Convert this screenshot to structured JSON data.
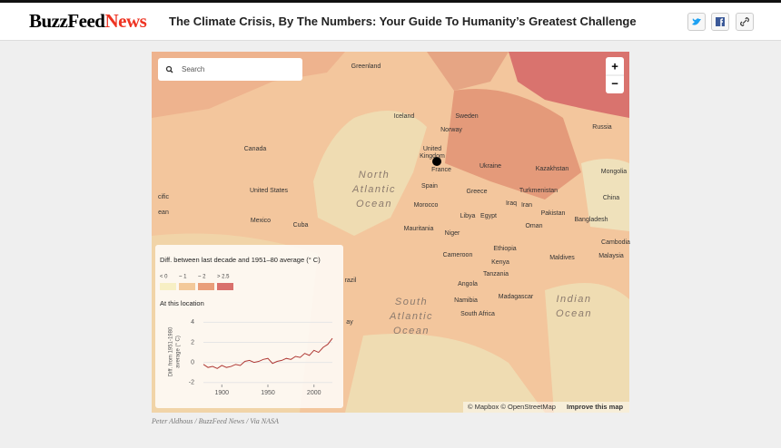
{
  "header": {
    "brand": "BuzzFeed",
    "brand_suffix": "News",
    "title": "The Climate Crisis, By The Numbers: Your Guide To Humanity’s Greatest Challenge"
  },
  "map": {
    "search_placeholder": "Search",
    "zoom_in": "+",
    "zoom_out": "−",
    "labels": [
      "Greenland",
      "Iceland",
      "Sweden",
      "Norway",
      "Russia",
      "Canada",
      "United",
      "Kingdom",
      "France",
      "Ukraine",
      "Kazakhstan",
      "Mongolia",
      "United States",
      "Spain",
      "Greece",
      "Turkmenistan",
      "China",
      "Morocco",
      "Iraq",
      "Iran",
      "Mexico",
      "Cuba",
      "Libya",
      "Egypt",
      "Pakistan",
      "Bangladesh",
      "Oman",
      "Mauritania",
      "Niger",
      "Ethiopia",
      "Cambodia",
      "Cameroon",
      "Kenya",
      "Maldives",
      "Malaysia",
      "Tanzania",
      "Angola",
      "Madagascar",
      "Namibia",
      "South Africa",
      "razil",
      "ay",
      "cific",
      "ean"
    ],
    "ocean_labels": [
      "North",
      "Atlantic",
      "Ocean",
      "South",
      "Atlantic",
      "Ocean",
      "Indian",
      "Ocean"
    ],
    "attribution": "© Mapbox © OpenStreetMap",
    "improve": "Improve this map"
  },
  "legend": {
    "title": "Diff. between last decade and 1951–80 average (° C)",
    "items": [
      {
        "label": "< 0",
        "color": "#f7efc4"
      },
      {
        "label": "~ 1",
        "color": "#f3c99a"
      },
      {
        "label": "~ 2",
        "color": "#e99e7a"
      },
      {
        "label": "> 2.5",
        "color": "#d9706c"
      }
    ],
    "location_title": "At this location"
  },
  "chart_data": {
    "type": "line",
    "y_label": [
      "Diff. from 1951-1980",
      "average (° C)"
    ],
    "x": [
      1880,
      1885,
      1890,
      1895,
      1900,
      1905,
      1910,
      1915,
      1920,
      1925,
      1930,
      1935,
      1940,
      1945,
      1950,
      1955,
      1960,
      1965,
      1970,
      1975,
      1980,
      1985,
      1990,
      1995,
      2000,
      2005,
      2010,
      2015,
      2020
    ],
    "values": [
      -0.2,
      -0.5,
      -0.4,
      -0.6,
      -0.3,
      -0.5,
      -0.4,
      -0.2,
      -0.3,
      0.1,
      0.2,
      0.0,
      0.1,
      0.3,
      0.4,
      -0.1,
      0.1,
      0.2,
      0.4,
      0.3,
      0.6,
      0.5,
      0.9,
      0.7,
      1.2,
      1.0,
      1.5,
      1.8,
      2.4
    ],
    "color": "#b03a36",
    "xlim": [
      1880,
      2020
    ],
    "ylim": [
      -2.2,
      4.3
    ],
    "xticks": [
      1900,
      1950,
      2000
    ],
    "yticks": [
      -2,
      0,
      2,
      4
    ]
  },
  "caption": "Peter Aldhous / BuzzFeed News / Via NASA"
}
